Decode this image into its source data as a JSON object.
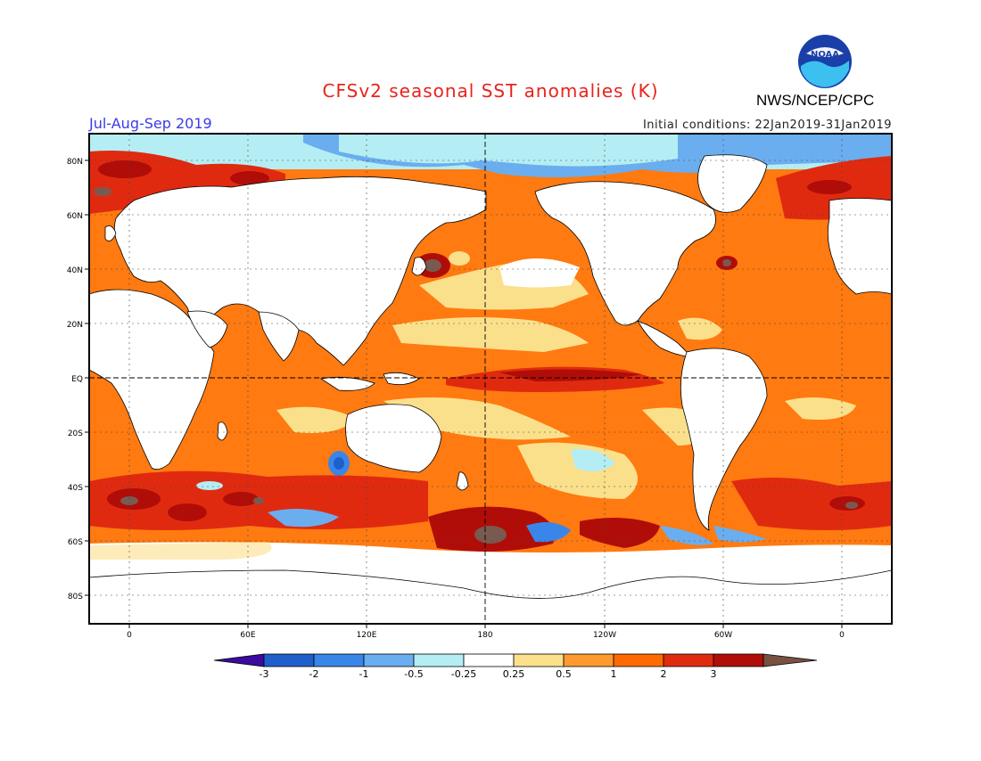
{
  "header": {
    "title": "CFSv2 seasonal SST anomalies (K)",
    "period": "Jul-Aug-Sep 2019",
    "initial_conditions": "Initial conditions: 22Jan2019-31Jan2019",
    "organization": "NWS/NCEP/CPC",
    "logo_text": "NOAA"
  },
  "map": {
    "lat_labels": [
      "80N",
      "60N",
      "40N",
      "20N",
      "EQ",
      "20S",
      "40S",
      "60S",
      "80S"
    ],
    "lat_values": [
      80,
      60,
      40,
      20,
      0,
      -20,
      -40,
      -60,
      -80
    ],
    "lon_labels": [
      "0",
      "60E",
      "120E",
      "180",
      "120W",
      "60W",
      "0"
    ],
    "lon_values": [
      0,
      60,
      120,
      180,
      240,
      300,
      360
    ]
  },
  "colorbar": {
    "labels": [
      "-3",
      "-2",
      "-1",
      "-0.5",
      "-0.25",
      "0.25",
      "0.5",
      "1",
      "2",
      "3"
    ],
    "colors": [
      "#3a0b9e",
      "#1f5fcc",
      "#3a86e8",
      "#6aaef0",
      "#b4eef4",
      "#ffffff",
      "#fbe08c",
      "#ff9a2e",
      "#ff6a00",
      "#e02a10",
      "#b00d08",
      "#7a5040"
    ]
  },
  "colors": {
    "land": "#ffffff",
    "warm_strong": "#b00d08",
    "warm": "#e02a10",
    "warm_mid": "#ff6a00",
    "warm_light": "#fbe08c",
    "cool_light": "#b4eef4",
    "cool": "#3a86e8",
    "extreme": "#7a5a50"
  }
}
